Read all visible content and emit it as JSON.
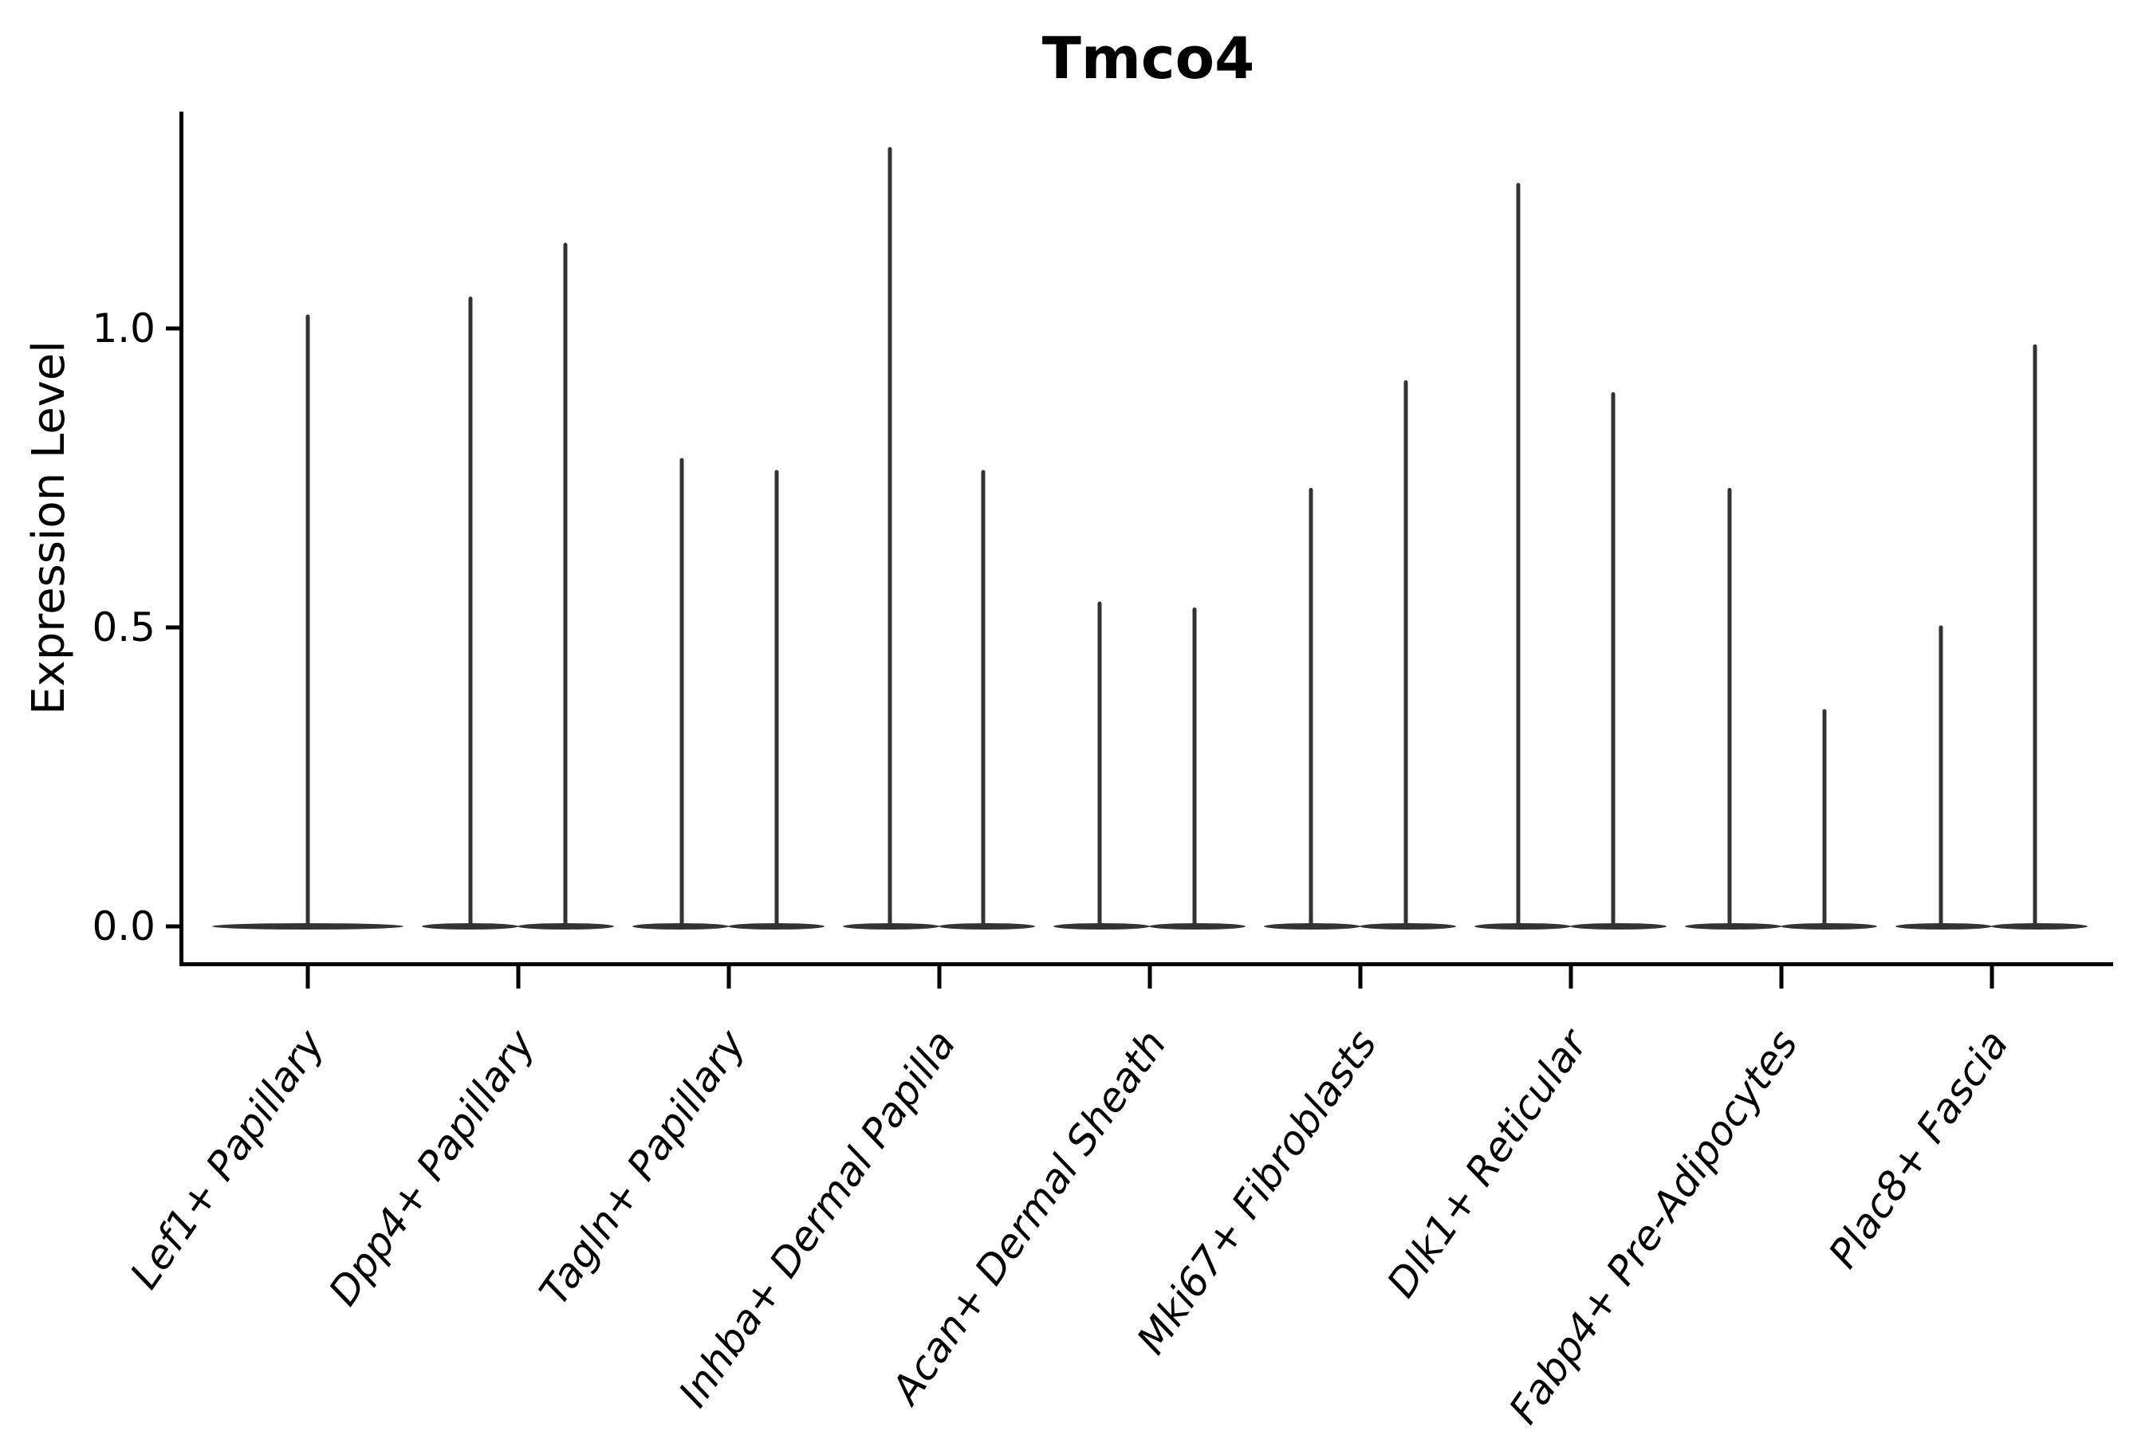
{
  "colors": {
    "background": "#ffffff",
    "axis": "#000000",
    "text": "#000000",
    "violin": "#333333"
  },
  "chart_data": {
    "type": "violin",
    "title": "Tmco4",
    "xlabel": "",
    "ylabel": "Expression Level",
    "grid": false,
    "legend": null,
    "ylim": [
      -0.07,
      1.36
    ],
    "ytick_values": [
      0.0,
      0.5,
      1.0
    ],
    "ytick_labels": [
      "0.0",
      "0.5",
      "1.0"
    ],
    "categories": [
      "Lef1+ Papillary",
      "Dpp4+ Papillary",
      "Tagln+ Papillary",
      "Inhba+ Dermal Papilla",
      "Acan+ Dermal Sheath",
      "Mki67+ Fibroblasts",
      "Dlk1+ Reticular",
      "Fabp4+ Pre-Adipocytes",
      "Plac8+ Fascia"
    ],
    "violin_description": "Each cell type shows a wide flat violin base at expression 0 with one or two thin density spikes rising to the peak expression level; dx is the horizontal offset of each spike from the category center in figure px",
    "baseline_value": 0.0,
    "violins": [
      {
        "category": "Lef1+ Papillary",
        "spikes": [
          {
            "dx": 0,
            "peak": 1.02
          }
        ]
      },
      {
        "category": "Dpp4+ Papillary",
        "spikes": [
          {
            "dx": -60,
            "peak": 1.05
          },
          {
            "dx": 59,
            "peak": 1.14
          }
        ]
      },
      {
        "category": "Tagln+ Papillary",
        "spikes": [
          {
            "dx": -59,
            "peak": 0.78
          },
          {
            "dx": 60,
            "peak": 0.76
          }
        ]
      },
      {
        "category": "Inhba+ Dermal Papilla",
        "spikes": [
          {
            "dx": -62,
            "peak": 1.3
          },
          {
            "dx": 55,
            "peak": 0.76
          }
        ]
      },
      {
        "category": "Acan+ Dermal Sheath",
        "spikes": [
          {
            "dx": -63,
            "peak": 0.54
          },
          {
            "dx": 56,
            "peak": 0.53
          }
        ]
      },
      {
        "category": "Mki67+ Fibroblasts",
        "spikes": [
          {
            "dx": -62,
            "peak": 0.73
          },
          {
            "dx": 57,
            "peak": 0.91
          }
        ]
      },
      {
        "category": "Dlk1+ Reticular",
        "spikes": [
          {
            "dx": -66,
            "peak": 1.24
          },
          {
            "dx": 53,
            "peak": 0.89
          }
        ]
      },
      {
        "category": "Fabp4+ Pre-Adipocytes",
        "spikes": [
          {
            "dx": -65,
            "peak": 0.73
          },
          {
            "dx": 54,
            "peak": 0.36
          }
        ]
      },
      {
        "category": "Plac8+ Fascia",
        "spikes": [
          {
            "dx": -64,
            "peak": 0.5
          },
          {
            "dx": 54,
            "peak": 0.97
          }
        ]
      }
    ]
  }
}
